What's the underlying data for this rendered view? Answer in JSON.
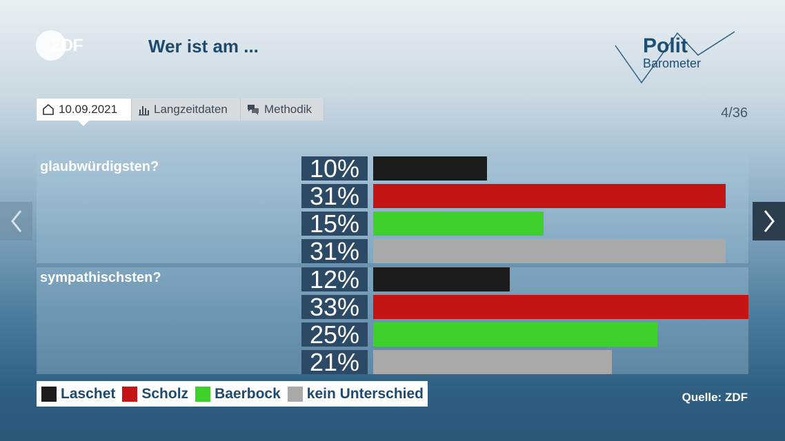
{
  "header": {
    "logo": "ZDF",
    "title": "Wer ist am ...",
    "brand_line1": "Polit",
    "brand_line2": "Barometer"
  },
  "tabs": [
    {
      "label": "10.09.2021",
      "icon": "home-icon",
      "active": true
    },
    {
      "label": "Langzeitdaten",
      "icon": "bar-chart-icon",
      "active": false
    },
    {
      "label": "Methodik",
      "icon": "chat-icon",
      "active": false
    }
  ],
  "pager": "4/36",
  "nav": {
    "prev_icon": "chevron-left-icon",
    "next_icon": "chevron-right-icon"
  },
  "source": "Quelle: ZDF",
  "chart_data": {
    "type": "bar",
    "orientation": "horizontal",
    "title": "Wer ist am ...",
    "xlim": [
      0,
      33
    ],
    "series_colors": {
      "Laschet": "#1c1c1c",
      "Scholz": "#c41414",
      "Baerbock": "#3fd12b",
      "kein Unterschied": "#a9a9a9"
    },
    "legend": [
      {
        "name": "Laschet",
        "color": "#1c1c1c"
      },
      {
        "name": "Scholz",
        "color": "#c41414"
      },
      {
        "name": "Baerbock",
        "color": "#3fd12b"
      },
      {
        "name": "kein Unterschied",
        "color": "#a9a9a9"
      }
    ],
    "groups": [
      {
        "question": "glaubwürdigsten?",
        "bars": [
          {
            "series": "Laschet",
            "value": 10,
            "label": "10%"
          },
          {
            "series": "Scholz",
            "value": 31,
            "label": "31%"
          },
          {
            "series": "Baerbock",
            "value": 15,
            "label": "15%"
          },
          {
            "series": "kein Unterschied",
            "value": 31,
            "label": "31%"
          }
        ]
      },
      {
        "question": "sympathischsten?",
        "bars": [
          {
            "series": "Laschet",
            "value": 12,
            "label": "12%"
          },
          {
            "series": "Scholz",
            "value": 33,
            "label": "33%"
          },
          {
            "series": "Baerbock",
            "value": 25,
            "label": "25%"
          },
          {
            "series": "kein Unterschied",
            "value": 21,
            "label": "21%"
          }
        ]
      }
    ]
  }
}
